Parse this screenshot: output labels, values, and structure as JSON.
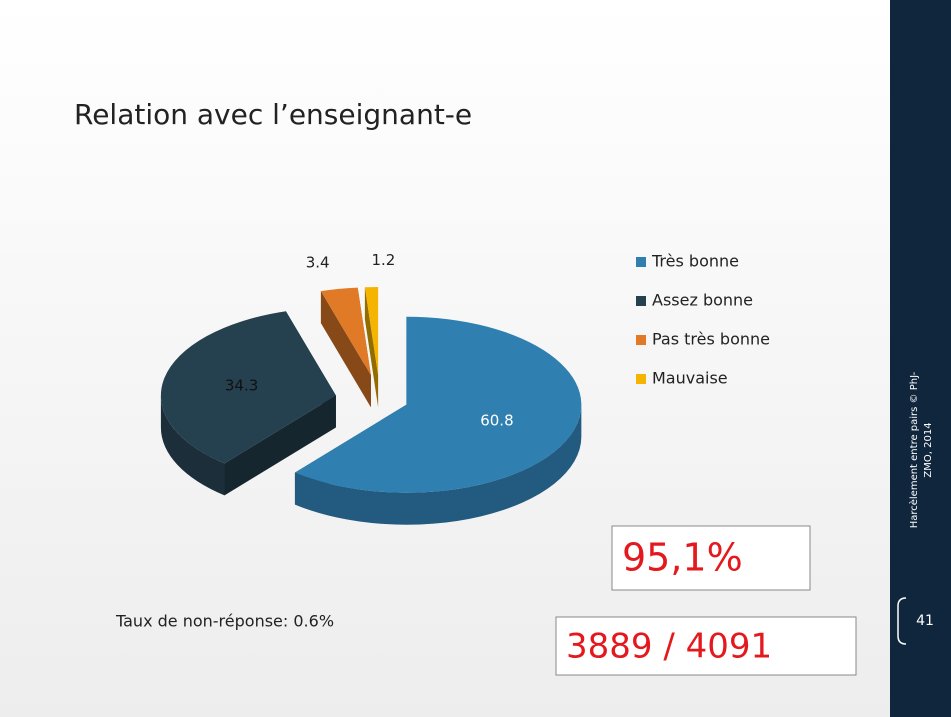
{
  "chart_data": {
    "type": "pie",
    "title": "Relation avec l’enseignant-e",
    "categories": [
      "Très bonne",
      "Assez bonne",
      "Pas très bonne",
      "Mauvaise"
    ],
    "values": [
      60.8,
      34.3,
      3.4,
      1.2
    ],
    "colors": [
      "#2f7fb0",
      "#25404f",
      "#e07a26",
      "#f4b400"
    ],
    "legend": "right"
  },
  "note": "Taux de non-réponse: 0.6%",
  "boxes": [
    "95,1%",
    "3889 / 4091"
  ],
  "sidebar": {
    "credit": [
      "Harcèlement entre pairs © PhJ-",
      "ZMO, 2014"
    ],
    "page": "41"
  }
}
